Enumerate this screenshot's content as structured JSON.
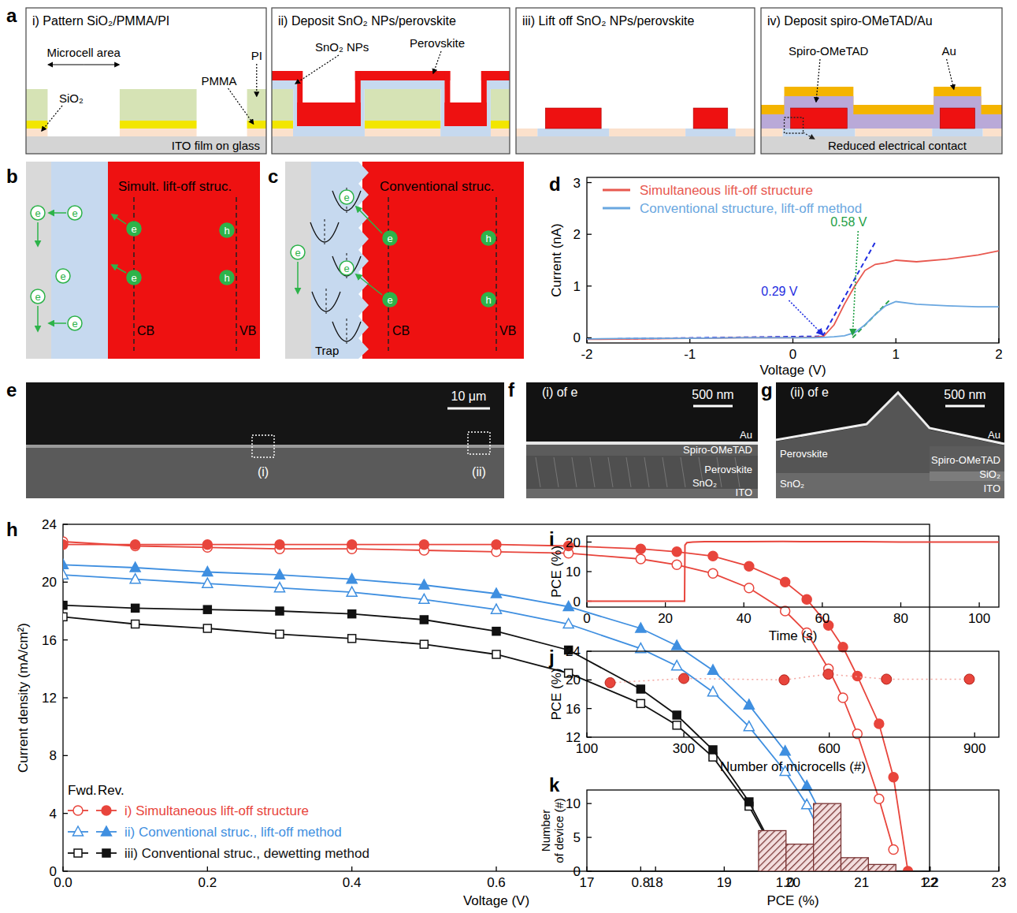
{
  "diagrams": {
    "a": {
      "panel": "a",
      "subpanels": [
        {
          "title": "i) Pattern SiO₂/PMMA/PI",
          "labels": [
            "Microcell area",
            "SiO₂",
            "PMMA",
            "PI",
            "ITO film on glass"
          ]
        },
        {
          "title": "ii) Deposit SnO₂ NPs/perovskite",
          "labels": [
            "SnO₂ NPs",
            "Perovskite"
          ]
        },
        {
          "title": "iii) Lift off SnO₂ NPs/perovskite",
          "labels": []
        },
        {
          "title": "iv) Deposit spiro-OMeTAD/Au",
          "labels": [
            "Spiro-OMeTAD",
            "Au",
            "Reduced electrical contact"
          ]
        }
      ]
    },
    "b": {
      "panel": "b",
      "title": "Simult. lift-off struc.",
      "cb": "CB",
      "vb": "VB",
      "electron": "e",
      "hole": "h"
    },
    "c": {
      "panel": "c",
      "title": "Conventional struc.",
      "cb": "CB",
      "vb": "VB",
      "trap": "Trap",
      "electron": "e",
      "hole": "h"
    },
    "e": {
      "panel": "e",
      "scale_bar": "10 μm",
      "regions": [
        "(i)",
        "(ii)"
      ]
    },
    "f": {
      "panel": "f",
      "title": "(i) of e",
      "scale_bar": "500 nm",
      "layers": [
        "Au",
        "Spiro-OMeTAD",
        "Perovskite",
        "SnO₂",
        "ITO"
      ]
    },
    "g": {
      "panel": "g",
      "title": "(ii) of e",
      "scale_bar": "500 nm",
      "layers": [
        "Perovskite",
        "SnO₂",
        "Au",
        "Spiro-OMeTAD",
        "SiO₂",
        "ITO"
      ]
    }
  },
  "chart_data": [
    {
      "panel": "d",
      "type": "line",
      "x_label": "Voltage (V)",
      "y_label": "Current (nA)",
      "x": [
        -2,
        -1.5,
        -1,
        -0.5,
        0,
        0.2,
        0.3,
        0.4,
        0.5,
        0.6,
        0.7,
        0.8,
        0.9,
        1.0,
        1.2,
        1.5,
        1.8,
        2.0
      ],
      "series": [
        {
          "name": "Simultaneous lift-off structure",
          "color": "#e8584f",
          "values": [
            -0.03,
            -0.02,
            -0.01,
            0,
            0,
            0.01,
            0.03,
            0.25,
            0.65,
            1.0,
            1.3,
            1.42,
            1.45,
            1.5,
            1.47,
            1.52,
            1.6,
            1.68
          ]
        },
        {
          "name": "Conventional structure, lift-off method",
          "color": "#6aa7e0",
          "values": [
            -0.02,
            -0.01,
            -0.01,
            0,
            0,
            0,
            0.01,
            0.02,
            0.04,
            0.1,
            0.25,
            0.45,
            0.62,
            0.7,
            0.65,
            0.62,
            0.6,
            0.6
          ]
        }
      ],
      "fit_lines": [
        {
          "color": "#1f2de0",
          "x": [
            -1.7,
            0.29,
            0.8
          ],
          "y": [
            -0.02,
            0.03,
            1.85
          ]
        },
        {
          "color": "#23a046",
          "x": [
            0.58,
            0.95
          ],
          "y": [
            0,
            0.75
          ]
        }
      ],
      "annotations": [
        {
          "text": "0.58 V",
          "x": 0.58,
          "color": "#23a046"
        },
        {
          "text": "0.29 V",
          "x": 0.29,
          "color": "#1f2de0"
        }
      ],
      "xlim": [
        -2,
        2
      ],
      "xticks": [
        -2,
        -1,
        0,
        1,
        2
      ],
      "ylim": [
        -0.1,
        3.1
      ],
      "yticks": [
        0,
        1,
        2,
        3
      ],
      "legend": "top"
    },
    {
      "panel": "h",
      "type": "line",
      "x_label": "Voltage (V)",
      "y_label": "Current density (mA/cm²)",
      "legend_header": [
        "Fwd.",
        "Rev."
      ],
      "x": [
        0,
        0.1,
        0.2,
        0.3,
        0.4,
        0.5,
        0.6,
        0.7,
        0.8,
        0.85,
        0.9,
        0.95,
        1.0,
        1.03,
        1.06,
        1.08,
        1.1,
        1.13,
        1.15,
        1.17
      ],
      "series": [
        {
          "name": "i) Simultaneous lift-off structure",
          "color": "#e8453c",
          "marker": "circle",
          "values": [
            22.6,
            22.6,
            22.6,
            22.6,
            22.6,
            22.6,
            22.6,
            22.5,
            22.3,
            22.1,
            21.8,
            21.1,
            20.0,
            18.8,
            17.0,
            15.5,
            13.5,
            10.2,
            6.5,
            0
          ],
          "values_fwd": [
            22.8,
            22.5,
            22.4,
            22.3,
            22.3,
            22.2,
            22.1,
            22.0,
            21.6,
            21.2,
            20.6,
            19.6,
            18.0,
            16.5,
            14.0,
            12.0,
            9.5,
            5.0,
            1.5,
            null
          ]
        },
        {
          "name": "ii) Conventional struc., lift-off method",
          "color": "#3f8fe0",
          "marker": "triangle",
          "values": [
            21.2,
            21.0,
            20.7,
            20.5,
            20.2,
            19.8,
            19.2,
            18.3,
            16.8,
            15.6,
            13.9,
            11.5,
            8.3,
            5.9,
            3.0,
            0.5,
            null,
            null,
            null,
            null
          ],
          "values_fwd": [
            20.5,
            20.2,
            19.9,
            19.6,
            19.3,
            18.8,
            18.1,
            17.1,
            15.4,
            14.2,
            12.4,
            10.0,
            6.9,
            4.6,
            1.5,
            null,
            null,
            null,
            null,
            null
          ]
        },
        {
          "name": "iii) Conventional struc., dewetting method",
          "color": "#111111",
          "marker": "square",
          "values": [
            18.4,
            18.2,
            18.1,
            18.0,
            17.8,
            17.4,
            16.6,
            15.3,
            12.6,
            10.8,
            8.4,
            4.8,
            0,
            null,
            null,
            null,
            null,
            null,
            null,
            null
          ],
          "values_fwd": [
            17.6,
            17.1,
            16.8,
            16.4,
            16.1,
            15.7,
            15.0,
            13.7,
            11.6,
            10.1,
            7.9,
            4.5,
            0,
            null,
            null,
            null,
            null,
            null,
            null,
            null
          ]
        }
      ],
      "xlim": [
        0,
        1.2
      ],
      "xticks": [
        {
          "value": 0,
          "label": "0.0"
        },
        {
          "value": 0.2,
          "label": "0.2"
        },
        {
          "value": 0.4,
          "label": "0.4"
        },
        {
          "value": 0.6,
          "label": "0.6"
        },
        {
          "value": 0.8,
          "label": "0.8"
        },
        {
          "value": 1.0,
          "label": "1.0"
        },
        {
          "value": 1.2,
          "label": "1.2"
        }
      ],
      "ylim": [
        0,
        24
      ],
      "yticks": [
        0,
        4,
        8,
        12,
        16,
        20,
        24
      ],
      "legend": "lower left"
    },
    {
      "panel": "i",
      "type": "line",
      "x_label": "Time (s)",
      "y_label": "PCE (%)",
      "color": "#e8453c",
      "x": [
        0,
        24.9,
        25,
        25.5,
        27,
        30,
        40,
        50,
        60,
        70,
        80,
        90,
        100,
        105
      ],
      "values": [
        0,
        0,
        19.0,
        19.8,
        20.0,
        20.1,
        20.1,
        20.2,
        20.1,
        20.1,
        20.0,
        20.0,
        20.0,
        20.0
      ],
      "xlim": [
        0,
        105
      ],
      "xticks": [
        0,
        20,
        40,
        60,
        80,
        100
      ],
      "ylim": [
        -2,
        22
      ],
      "yticks": [
        0,
        10,
        20
      ]
    },
    {
      "panel": "j",
      "type": "scatter",
      "x_label": "Number of microcells (#)",
      "y_label": "PCE (%)",
      "color": "#e8453c",
      "line_style": "dotted",
      "x": [
        148,
        300,
        507,
        598,
        718,
        889
      ],
      "values": [
        19.6,
        20.2,
        20.0,
        20.8,
        20.1,
        20.1
      ],
      "xlim": [
        100,
        950
      ],
      "xticks": [
        100,
        300,
        600,
        900
      ],
      "ylim": [
        12,
        24
      ],
      "yticks": [
        12,
        16,
        20,
        24
      ]
    },
    {
      "panel": "k",
      "type": "histogram",
      "x_label": "PCE (%)",
      "y_label": "Number of device (#)",
      "color": "#7a3535",
      "bins": [
        19.5,
        19.9,
        20.3,
        20.7,
        21.1,
        21.5
      ],
      "counts": [
        6,
        4,
        10,
        2,
        1
      ],
      "xlim": [
        17,
        23
      ],
      "xticks": [
        17,
        18,
        19,
        20,
        21,
        22,
        23
      ],
      "ylim": [
        0,
        12
      ],
      "yticks": [
        0,
        5,
        10
      ]
    }
  ]
}
